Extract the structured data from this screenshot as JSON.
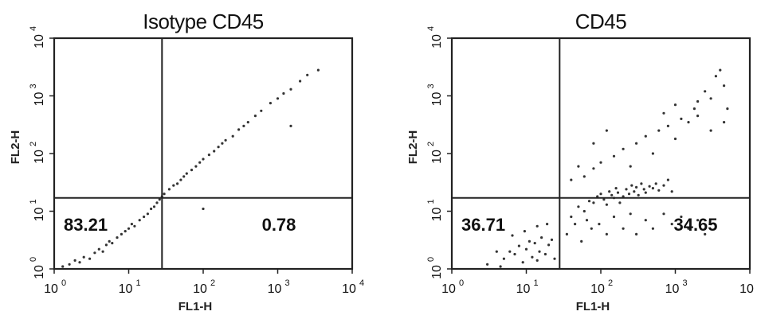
{
  "chart_data": [
    {
      "type": "scatter",
      "title": "Isotype CD45",
      "xlabel": "FL1-H",
      "ylabel": "FL2-H",
      "xscale": "log",
      "yscale": "log",
      "xlim": [
        1,
        10000
      ],
      "ylim": [
        1,
        10000
      ],
      "x_tick_labels": [
        "10^0",
        "10^1",
        "10^2",
        "10^3",
        "10^4"
      ],
      "y_tick_labels": [
        "10^0",
        "10^1",
        "10^2",
        "10^3",
        "10^4"
      ],
      "gate": {
        "x": 28,
        "y": 17
      },
      "quadrant_labels": [
        {
          "position": "lower-left",
          "text": "83.21"
        },
        {
          "position": "lower-right",
          "text": "0.78"
        }
      ],
      "grid": false,
      "points": [
        [
          1.3,
          1.1
        ],
        [
          1.6,
          1.2
        ],
        [
          1.9,
          1.4
        ],
        [
          2.2,
          1.3
        ],
        [
          2.5,
          1.6
        ],
        [
          3.0,
          1.5
        ],
        [
          3.5,
          1.9
        ],
        [
          4.0,
          2.2
        ],
        [
          4.5,
          2.0
        ],
        [
          5.0,
          2.6
        ],
        [
          5.5,
          3.0
        ],
        [
          6.0,
          2.8
        ],
        [
          7.0,
          3.5
        ],
        [
          8.0,
          4.0
        ],
        [
          9.0,
          4.5
        ],
        [
          10,
          5.0
        ],
        [
          11,
          6.0
        ],
        [
          12,
          5.5
        ],
        [
          14,
          7.0
        ],
        [
          16,
          8.0
        ],
        [
          18,
          9.0
        ],
        [
          20,
          11
        ],
        [
          22,
          12
        ],
        [
          24,
          14
        ],
        [
          26,
          16
        ],
        [
          28,
          18
        ],
        [
          30,
          20
        ],
        [
          35,
          24
        ],
        [
          40,
          28
        ],
        [
          45,
          30
        ],
        [
          50,
          35
        ],
        [
          55,
          40
        ],
        [
          60,
          45
        ],
        [
          70,
          52
        ],
        [
          80,
          60
        ],
        [
          90,
          70
        ],
        [
          100,
          80
        ],
        [
          120,
          95
        ],
        [
          140,
          110
        ],
        [
          160,
          130
        ],
        [
          180,
          150
        ],
        [
          200,
          170
        ],
        [
          250,
          200
        ],
        [
          300,
          260
        ],
        [
          350,
          300
        ],
        [
          400,
          350
        ],
        [
          500,
          450
        ],
        [
          600,
          550
        ],
        [
          800,
          750
        ],
        [
          1000,
          900
        ],
        [
          1200,
          1100
        ],
        [
          1500,
          1300
        ],
        [
          2000,
          1800
        ],
        [
          2500,
          2300
        ],
        [
          3500,
          2800
        ],
        [
          1500,
          300
        ],
        [
          100,
          11
        ]
      ]
    },
    {
      "type": "scatter",
      "title": "CD45",
      "xlabel": "FL1-H",
      "ylabel": "FL2-H",
      "xscale": "log",
      "yscale": "log",
      "xlim": [
        1,
        10000
      ],
      "ylim": [
        1,
        10000
      ],
      "x_tick_labels": [
        "10^0",
        "10^1",
        "10^2",
        "10^3",
        "10^4"
      ],
      "y_tick_labels": [
        "10^0",
        "10^1",
        "10^2",
        "10^3",
        "10^4"
      ],
      "gate": {
        "x": 28,
        "y": 17
      },
      "quadrant_labels": [
        {
          "position": "lower-left",
          "text": "36.71"
        },
        {
          "position": "lower-right",
          "text": "34.65"
        }
      ],
      "grid": false,
      "points": [
        [
          5,
          1.5
        ],
        [
          6,
          2.0
        ],
        [
          7,
          1.8
        ],
        [
          8,
          2.5
        ],
        [
          9,
          1.3
        ],
        [
          10,
          2.2
        ],
        [
          11,
          3.0
        ],
        [
          12,
          1.6
        ],
        [
          13,
          2.8
        ],
        [
          14,
          1.4
        ],
        [
          15,
          2.0
        ],
        [
          16,
          3.5
        ],
        [
          18,
          1.8
        ],
        [
          20,
          2.6
        ],
        [
          22,
          3.2
        ],
        [
          24,
          1.5
        ],
        [
          3,
          1.2
        ],
        [
          4,
          2.0
        ],
        [
          4.5,
          1.1
        ],
        [
          6.5,
          3.8
        ],
        [
          9.5,
          4.5
        ],
        [
          14,
          5.5
        ],
        [
          19,
          6.0
        ],
        [
          40,
          8
        ],
        [
          50,
          12
        ],
        [
          60,
          10
        ],
        [
          70,
          15
        ],
        [
          80,
          14
        ],
        [
          90,
          18
        ],
        [
          100,
          20
        ],
        [
          110,
          16
        ],
        [
          120,
          13
        ],
        [
          130,
          22
        ],
        [
          140,
          19
        ],
        [
          150,
          17
        ],
        [
          160,
          25
        ],
        [
          170,
          21
        ],
        [
          180,
          14
        ],
        [
          200,
          18
        ],
        [
          220,
          24
        ],
        [
          240,
          20
        ],
        [
          260,
          28
        ],
        [
          280,
          22
        ],
        [
          300,
          26
        ],
        [
          320,
          19
        ],
        [
          350,
          30
        ],
        [
          380,
          24
        ],
        [
          400,
          21
        ],
        [
          450,
          27
        ],
        [
          500,
          25
        ],
        [
          550,
          30
        ],
        [
          600,
          23
        ],
        [
          700,
          28
        ],
        [
          800,
          35
        ],
        [
          900,
          22
        ],
        [
          35,
          4
        ],
        [
          45,
          6
        ],
        [
          55,
          3
        ],
        [
          65,
          7
        ],
        [
          75,
          5
        ],
        [
          95,
          6
        ],
        [
          120,
          4
        ],
        [
          150,
          8
        ],
        [
          200,
          5
        ],
        [
          250,
          9
        ],
        [
          300,
          4
        ],
        [
          400,
          7
        ],
        [
          500,
          5
        ],
        [
          700,
          9
        ],
        [
          900,
          6
        ],
        [
          1200,
          8
        ],
        [
          1500,
          5
        ],
        [
          2000,
          7
        ],
        [
          2500,
          4
        ],
        [
          3000,
          6
        ],
        [
          60,
          40
        ],
        [
          80,
          55
        ],
        [
          100,
          70
        ],
        [
          150,
          90
        ],
        [
          200,
          120
        ],
        [
          250,
          60
        ],
        [
          300,
          150
        ],
        [
          400,
          200
        ],
        [
          500,
          100
        ],
        [
          600,
          250
        ],
        [
          800,
          300
        ],
        [
          1000,
          180
        ],
        [
          1200,
          400
        ],
        [
          1500,
          350
        ],
        [
          1800,
          600
        ],
        [
          2000,
          800
        ],
        [
          2500,
          1200
        ],
        [
          3000,
          900
        ],
        [
          3500,
          2200
        ],
        [
          4000,
          2800
        ],
        [
          4500,
          1500
        ],
        [
          5000,
          600
        ],
        [
          4500,
          350
        ],
        [
          3000,
          250
        ],
        [
          2000,
          450
        ],
        [
          1000,
          700
        ],
        [
          700,
          500
        ],
        [
          40,
          35
        ],
        [
          120,
          250
        ],
        [
          80,
          150
        ],
        [
          50,
          60
        ]
      ]
    }
  ]
}
